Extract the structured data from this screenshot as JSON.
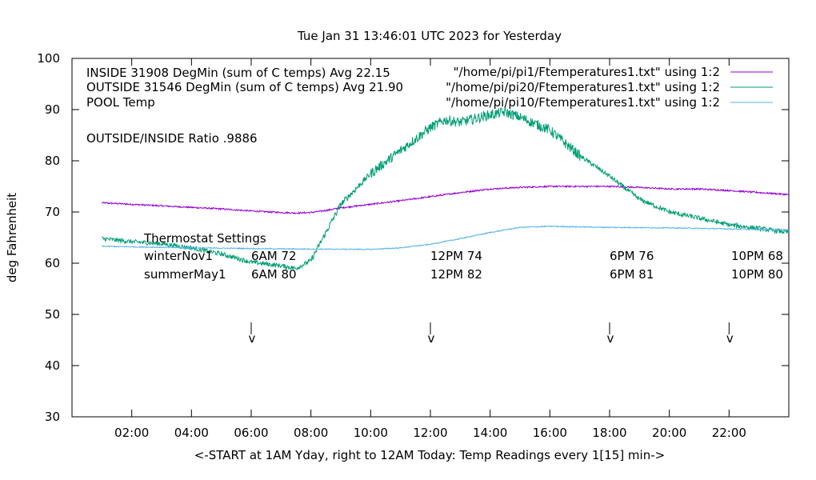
{
  "chart_data": {
    "type": "line",
    "title": "Tue Jan 31 13:46:01 UTC 2023 for Yesterday",
    "xlabel": "<-START at 1AM Yday, right to 12AM Today:  Temp Readings every 1[15] min->",
    "ylabel": "deg Fahrenheit",
    "xlim": [
      0,
      24
    ],
    "ylim": [
      30,
      100
    ],
    "y_ticks": [
      30,
      40,
      50,
      60,
      70,
      80,
      90,
      100
    ],
    "x_tick_labels": [
      "02:00",
      "04:00",
      "06:00",
      "08:00",
      "10:00",
      "12:00",
      "14:00",
      "16:00",
      "18:00",
      "20:00",
      "22:00"
    ],
    "x_tick_hours": [
      2,
      4,
      6,
      8,
      10,
      12,
      14,
      16,
      18,
      20,
      22
    ],
    "grid": false,
    "legend_position": "top-right",
    "series": [
      {
        "name": "INSIDE 31908 DegMin (sum of C temps) Avg 22.15",
        "key_label": "\"/home/pi/pi1/Ftemperatures1.txt\" using 1:2",
        "color": "#9400d3",
        "noise": 0.15,
        "x": [
          1,
          2,
          3,
          4,
          5,
          6,
          7,
          7.5,
          8,
          8.5,
          9,
          10,
          11,
          12,
          13,
          14,
          15,
          16,
          17,
          18,
          19,
          20,
          21,
          22,
          23,
          24
        ],
        "y": [
          71.8,
          71.5,
          71.2,
          70.9,
          70.6,
          70.2,
          69.9,
          69.8,
          69.9,
          70.3,
          70.8,
          71.5,
          72.2,
          73.0,
          73.8,
          74.5,
          74.8,
          75.0,
          75.0,
          75.0,
          74.8,
          74.5,
          74.5,
          74.2,
          73.8,
          73.4
        ]
      },
      {
        "name": "OUTSIDE 31546 DegMin (sum of C temps) Avg 21.90",
        "key_label": "\"/home/pi/pi20/Ftemperatures1.txt\" using 1:2",
        "color": "#009e73",
        "noise": 1.0,
        "x": [
          1,
          2,
          3,
          4,
          5,
          6,
          7,
          7.5,
          8,
          8.5,
          9,
          9.5,
          10,
          11,
          12,
          12.5,
          13,
          14,
          14.5,
          15,
          16,
          17,
          18,
          19,
          20,
          21,
          22,
          23,
          24
        ],
        "y": [
          64.8,
          64.2,
          63.8,
          63.0,
          61.8,
          60.2,
          59.5,
          59.0,
          60.5,
          66.0,
          71.5,
          74.5,
          77.5,
          82.0,
          86.5,
          88.0,
          87.5,
          89.0,
          89.5,
          88.5,
          86.0,
          81.0,
          77.0,
          72.5,
          70.0,
          68.8,
          67.5,
          66.8,
          66.0
        ]
      },
      {
        "name": "POOL Temp",
        "key_label": "\"/home/pi/pi10/Ftemperatures1.txt\" using 1:2",
        "color": "#56b4e9",
        "noise": 0.1,
        "x": [
          1,
          4,
          7,
          10,
          11,
          12,
          13,
          14,
          15,
          16,
          18,
          20,
          22,
          24
        ],
        "y": [
          63.3,
          63.0,
          62.8,
          62.7,
          63.0,
          63.7,
          64.8,
          66.0,
          67.0,
          67.2,
          67.0,
          66.9,
          66.7,
          66.5
        ]
      }
    ],
    "annotations": {
      "ratio": "OUTSIDE/INSIDE Ratio .9886",
      "thermostat_title": "Thermostat Settings",
      "rows": [
        {
          "label": "winterNov1",
          "values": [
            "6AM 72",
            "12PM 74",
            "6PM 76",
            "10PM 68"
          ]
        },
        {
          "label": "summerMay1",
          "values": [
            "6AM 80",
            "12PM 82",
            "6PM 81",
            "10PM 80"
          ]
        }
      ],
      "arrow_hours": [
        6,
        12,
        18,
        22
      ],
      "arrow_glyph": "v"
    }
  }
}
